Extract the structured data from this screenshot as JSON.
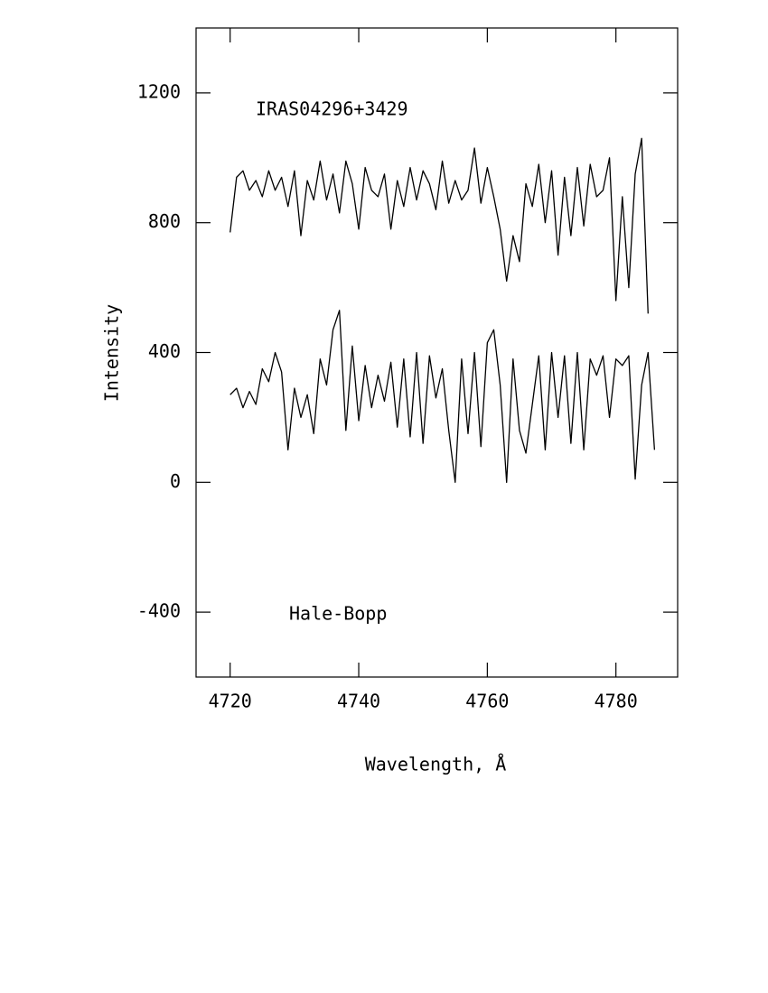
{
  "chart_data": {
    "type": "line",
    "y_label": "Intensity",
    "x_label": "Wavelength, Å",
    "annotations": [
      "IRAS04296+3429",
      "Hale-Bopp"
    ],
    "xlim": [
      4714.7,
      4789.6
    ],
    "ylim": [
      -600,
      1400
    ],
    "xticks": [
      4720,
      4740,
      4760,
      4780
    ],
    "yticks": [
      -400,
      0,
      400,
      800,
      1200
    ],
    "x": [
      4720,
      4721,
      4722,
      4723,
      4724,
      4725,
      4726,
      4727,
      4728,
      4729,
      4730,
      4731,
      4732,
      4733,
      4734,
      4735,
      4736,
      4737,
      4738,
      4739,
      4740,
      4741,
      4742,
      4743,
      4744,
      4745,
      4746,
      4747,
      4748,
      4749,
      4750,
      4751,
      4752,
      4753,
      4754,
      4755,
      4756,
      4757,
      4758,
      4759,
      4760,
      4761,
      4762,
      4763,
      4764,
      4765,
      4766,
      4767,
      4768,
      4769,
      4770,
      4771,
      4772,
      4773,
      4774,
      4775,
      4776,
      4777,
      4778,
      4779,
      4780,
      4781,
      4782,
      4783,
      4784,
      4785,
      4786
    ],
    "series": [
      {
        "color": "#000000",
        "values": [
          770,
          940,
          960,
          900,
          930,
          880,
          960,
          900,
          940,
          850,
          960,
          760,
          930,
          870,
          990,
          870,
          950,
          830,
          990,
          920,
          780,
          970,
          900,
          880,
          950,
          780,
          930,
          850,
          970,
          870,
          960,
          920,
          840,
          990,
          860,
          930,
          870,
          900,
          1030,
          860,
          970,
          880,
          780,
          620,
          760,
          680,
          920,
          850,
          980,
          800,
          960,
          700,
          940,
          760,
          970,
          790,
          980,
          880,
          900,
          1000,
          560,
          880,
          600,
          950,
          1060,
          520,
          null
        ]
      },
      {
        "color": "#000000",
        "values": [
          270,
          290,
          230,
          280,
          240,
          350,
          310,
          400,
          340,
          100,
          290,
          200,
          270,
          150,
          380,
          300,
          470,
          530,
          160,
          420,
          190,
          360,
          230,
          330,
          250,
          370,
          170,
          380,
          140,
          400,
          120,
          390,
          260,
          350,
          160,
          0,
          380,
          150,
          400,
          110,
          430,
          470,
          300,
          0,
          380,
          160,
          90,
          240,
          390,
          100,
          400,
          200,
          390,
          120,
          400,
          100,
          380,
          330,
          390,
          200,
          380,
          360,
          390,
          10,
          300,
          400,
          100
        ]
      }
    ]
  }
}
